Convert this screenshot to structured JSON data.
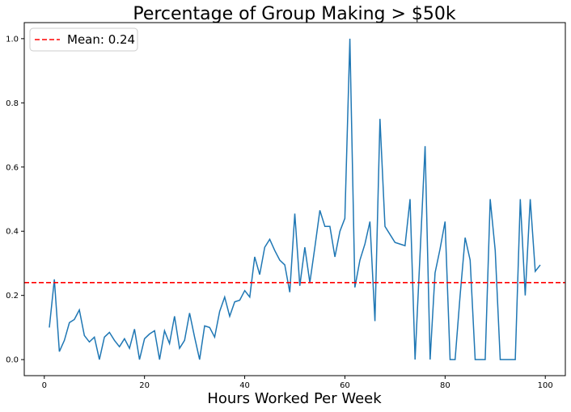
{
  "chart_data": {
    "type": "line",
    "title": "Percentage of Group Making > $50k",
    "xlabel": "Hours Worked Per Week",
    "ylabel": "",
    "xlim": [
      -4,
      104
    ],
    "ylim": [
      -0.05,
      1.05
    ],
    "xticks": [
      0,
      20,
      40,
      60,
      80,
      100
    ],
    "yticks": [
      0.0,
      0.2,
      0.4,
      0.6,
      0.8,
      1.0
    ],
    "grid": false,
    "legend_position": "top-left",
    "series": [
      {
        "kind": "line",
        "color": "#1f77b4",
        "x": [
          1,
          2,
          3,
          4,
          5,
          6,
          7,
          8,
          9,
          10,
          11,
          12,
          13,
          14,
          15,
          16,
          17,
          18,
          19,
          20,
          21,
          22,
          23,
          24,
          25,
          26,
          27,
          28,
          29,
          30,
          31,
          32,
          33,
          34,
          35,
          36,
          37,
          38,
          39,
          40,
          41,
          42,
          43,
          44,
          45,
          46,
          47,
          48,
          49,
          50,
          51,
          52,
          53,
          54,
          55,
          56,
          57,
          58,
          59,
          60,
          61,
          62,
          63,
          64,
          65,
          66,
          67,
          68,
          69,
          70,
          71,
          72,
          73,
          74,
          75,
          76,
          77,
          78,
          79,
          80,
          81,
          82,
          83,
          84,
          85,
          86,
          87,
          88,
          89,
          90,
          91,
          92,
          93,
          94,
          95,
          96,
          97,
          98,
          99
        ],
        "y": [
          0.1,
          0.25,
          0.025,
          0.06,
          0.115,
          0.125,
          0.155,
          0.075,
          0.055,
          0.07,
          0.0,
          0.07,
          0.085,
          0.06,
          0.04,
          0.065,
          0.035,
          0.095,
          0.0,
          0.065,
          0.08,
          0.09,
          0.0,
          0.09,
          0.05,
          0.135,
          0.035,
          0.06,
          0.145,
          0.07,
          0.0,
          0.105,
          0.1,
          0.07,
          0.15,
          0.195,
          0.135,
          0.18,
          0.185,
          0.215,
          0.195,
          0.32,
          0.265,
          0.35,
          0.375,
          0.34,
          0.31,
          0.295,
          0.21,
          0.455,
          0.23,
          0.35,
          0.24,
          0.35,
          0.465,
          0.415,
          0.415,
          0.32,
          0.4,
          0.44,
          1.0,
          0.225,
          0.31,
          0.36,
          0.43,
          0.12,
          0.75,
          0.415,
          0.39,
          0.365,
          0.36,
          0.355,
          0.5,
          0.0,
          0.33,
          0.665,
          0.0,
          0.27,
          0.345,
          0.43,
          0.0,
          0.0,
          0.2,
          0.38,
          0.31,
          0.0,
          0.0,
          0.0,
          0.5,
          0.34,
          0.0,
          0.0,
          0.0,
          0.0,
          0.5,
          0.2,
          0.5,
          0.275,
          0.295
        ]
      },
      {
        "name": "Mean: 0.24",
        "kind": "hline",
        "color": "#ff0000",
        "y": 0.24,
        "dashed": true
      }
    ]
  }
}
